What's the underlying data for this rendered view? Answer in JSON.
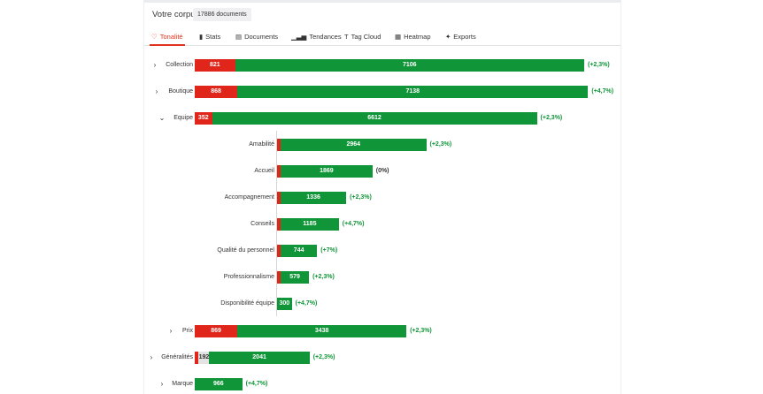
{
  "header": {
    "title": "Votre corpus",
    "badge": "17886 documents"
  },
  "tabs": [
    {
      "label": "Tonalité",
      "icon": "heart-icon",
      "glyph": "♡",
      "active": true
    },
    {
      "label": "Stats",
      "icon": "bar-chart-icon",
      "glyph": "▮",
      "active": false
    },
    {
      "label": "Documents",
      "icon": "documents-icon",
      "glyph": "▤",
      "active": false
    },
    {
      "label": "Tendances",
      "icon": "trend-icon",
      "glyph": "▁▃▅",
      "active": false
    },
    {
      "label": "Tag Cloud",
      "icon": "tag-cloud-icon",
      "glyph": "T",
      "active": false
    },
    {
      "label": "Heatmap",
      "icon": "heatmap-icon",
      "glyph": "▦",
      "active": false
    },
    {
      "label": "Exports",
      "icon": "export-icon",
      "glyph": "✦",
      "active": false
    }
  ],
  "colors": {
    "negative": "#e0251b",
    "positive": "#109639",
    "neutral": "#e3e3e3",
    "accent": "#e0321e"
  },
  "rows": [
    {
      "label": "Collection",
      "toggle": "›",
      "expanded": false,
      "negative": 821,
      "neutral": 0,
      "positive": 7106,
      "neg_label": "821",
      "neu_label": "",
      "pos_label": "7106",
      "delta": "(+2,3%)"
    },
    {
      "label": "Boutique",
      "toggle": "›",
      "expanded": false,
      "negative": 868,
      "neutral": 0,
      "positive": 7138,
      "neg_label": "868",
      "neu_label": "",
      "pos_label": "7138",
      "delta": "(+4,7%)"
    },
    {
      "label": "Equipe",
      "toggle": "⌄",
      "expanded": true,
      "negative": 352,
      "neutral": 0,
      "positive": 6612,
      "neg_label": "352",
      "neu_label": "",
      "pos_label": "6612",
      "delta": "(+2,3%)"
    },
    {
      "label": "Amabilité",
      "toggle": "",
      "expanded": false,
      "negative": 25,
      "neutral": 0,
      "positive": 2964,
      "neg_label": "",
      "neu_label": "",
      "pos_label": "2964",
      "delta": "(+2,3%)"
    },
    {
      "label": "Accueil",
      "toggle": "",
      "expanded": false,
      "negative": 15,
      "neutral": 0,
      "positive": 1869,
      "neg_label": "",
      "neu_label": "",
      "pos_label": "1869",
      "delta": "(0%)"
    },
    {
      "label": "Accompagnement",
      "toggle": "",
      "expanded": false,
      "negative": 15,
      "neutral": 0,
      "positive": 1336,
      "neg_label": "",
      "neu_label": "",
      "pos_label": "1336",
      "delta": "(+2,3%)"
    },
    {
      "label": "Conseils",
      "toggle": "",
      "expanded": false,
      "negative": 15,
      "neutral": 0,
      "positive": 1185,
      "neg_label": "",
      "neu_label": "",
      "pos_label": "1185",
      "delta": "(+4,7%)"
    },
    {
      "label": "Qualité du personnel",
      "toggle": "",
      "expanded": false,
      "negative": 15,
      "neutral": 0,
      "positive": 744,
      "neg_label": "",
      "neu_label": "",
      "pos_label": "744",
      "delta": "(+7%)"
    },
    {
      "label": "Professionnalisme",
      "toggle": "",
      "expanded": false,
      "negative": 15,
      "neutral": 0,
      "positive": 579,
      "neg_label": "",
      "neu_label": "",
      "pos_label": "579",
      "delta": "(+2,3%)"
    },
    {
      "label": "Disponibilité équipe",
      "toggle": "",
      "expanded": false,
      "negative": 0,
      "neutral": 0,
      "positive": 300,
      "neg_label": "",
      "neu_label": "",
      "pos_label": "300",
      "delta": "(+4,7%)"
    },
    {
      "label": "Prix",
      "toggle": "›",
      "expanded": false,
      "negative": 869,
      "neutral": 0,
      "positive": 3438,
      "neg_label": "869",
      "neu_label": "",
      "pos_label": "3438",
      "delta": "(+2,3%)"
    },
    {
      "label": "Généralités",
      "toggle": "›",
      "expanded": false,
      "negative": 80,
      "neutral": 192,
      "positive": 2041,
      "neg_label": "",
      "neu_label": "192",
      "pos_label": "2041",
      "delta": "(+2,3%)"
    },
    {
      "label": "Marque",
      "toggle": "›",
      "expanded": false,
      "negative": 0,
      "neutral": 0,
      "positive": 966,
      "neg_label": "",
      "neu_label": "",
      "pos_label": "966",
      "delta": "(+4,7%)"
    }
  ]
}
